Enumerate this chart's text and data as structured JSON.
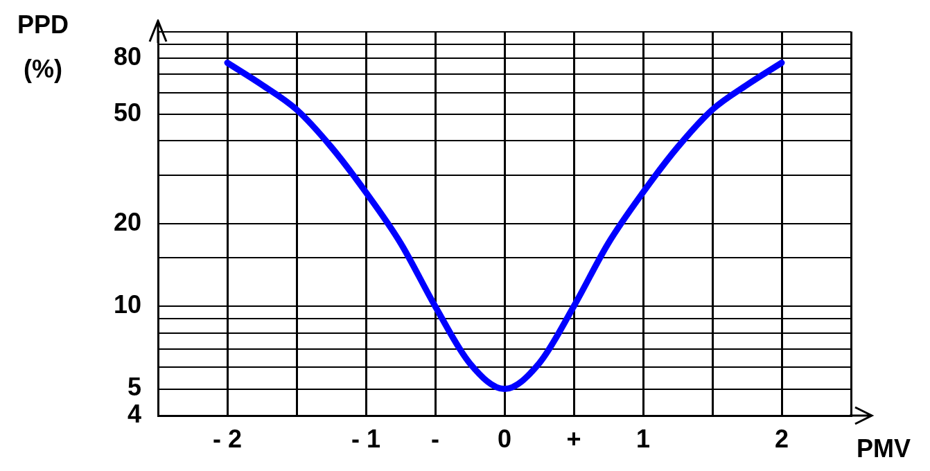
{
  "chart_data": {
    "type": "line",
    "xlabel": "PMV",
    "ylabel": "PPD (%)",
    "log": "y",
    "x": [
      -2,
      -1.75,
      -1.5,
      -1.25,
      -1,
      -0.75,
      -0.5,
      -0.25,
      0,
      0.25,
      0.5,
      0.75,
      1,
      1.25,
      1.5,
      1.75,
      2
    ],
    "series": [
      {
        "color": "#0000ff",
        "values": [
          77,
          64,
          52,
          38,
          26,
          17,
          10,
          6.2,
          5,
          6.2,
          10,
          17,
          26,
          38,
          52,
          64,
          77
        ]
      }
    ],
    "xlim": [
      -2.5,
      2.5
    ],
    "xticks": [
      {
        "value": -2.5,
        "label": null
      },
      {
        "value": -2,
        "label": "- 2"
      },
      {
        "value": -1.5,
        "label": null
      },
      {
        "value": -1,
        "label": "- 1"
      },
      {
        "value": -0.5,
        "label": "-"
      },
      0,
      {
        "value": 0.5,
        "label": "+"
      },
      1,
      {
        "value": 1.5,
        "label": null
      },
      2,
      {
        "value": 2.5,
        "label": null
      }
    ],
    "ylim": [
      4,
      100
    ],
    "yticks": [
      4,
      5,
      {
        "value": 6,
        "label": null
      },
      {
        "value": 7,
        "label": null
      },
      {
        "value": 8,
        "label": null
      },
      {
        "value": 9,
        "label": null
      },
      10,
      {
        "value": 15,
        "label": null
      },
      20,
      {
        "value": 30,
        "label": null
      },
      {
        "value": 40,
        "label": null
      },
      50,
      {
        "value": 60,
        "label": null
      },
      {
        "value": 70,
        "label": null
      },
      80,
      {
        "value": 90,
        "label": null
      },
      {
        "value": 100,
        "label": null
      }
    ],
    "grid": true,
    "legend": false,
    "marker": "none",
    "line_style": "solid"
  }
}
